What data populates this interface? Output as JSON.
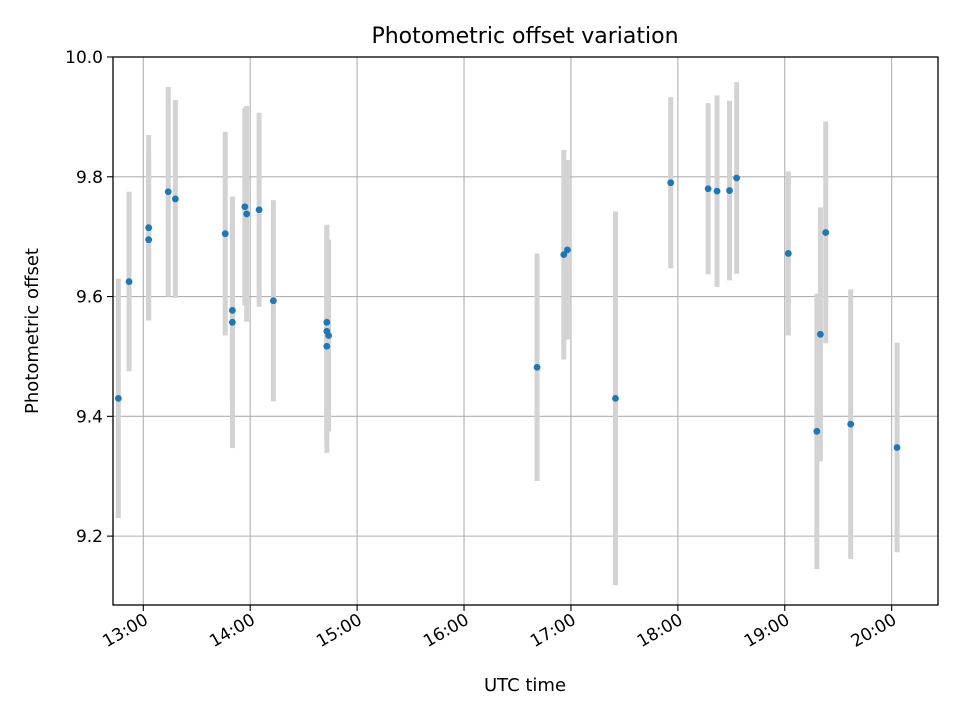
{
  "chart_data": {
    "type": "scatter",
    "title": "Photometric offset variation",
    "xlabel": "UTC time",
    "ylabel": "Photometric offset",
    "xlim": [
      "12:43",
      "20:26"
    ],
    "ylim": [
      9.085,
      10.0
    ],
    "x_ticks": [
      "13:00",
      "14:00",
      "15:00",
      "16:00",
      "17:00",
      "18:00",
      "19:00",
      "20:00"
    ],
    "y_ticks": [
      "9.2",
      "9.4",
      "9.6",
      "9.8",
      "10.0"
    ],
    "grid": true,
    "colors": {
      "point": "#1f77b4",
      "errorbar": "#d3d3d3",
      "grid": "#b0b0b0"
    },
    "points": [
      {
        "t": "12:46",
        "y": 9.43,
        "err": 0.2
      },
      {
        "t": "12:52",
        "y": 9.625,
        "err": 0.15
      },
      {
        "t": "13:03",
        "y": 9.715,
        "err": 0.155
      },
      {
        "t": "13:03",
        "y": 9.695,
        "err": 0.135
      },
      {
        "t": "13:14",
        "y": 9.775,
        "err": 0.175
      },
      {
        "t": "13:18",
        "y": 9.763,
        "err": 0.165
      },
      {
        "t": "13:46",
        "y": 9.705,
        "err": 0.17
      },
      {
        "t": "13:50",
        "y": 9.577,
        "err": 0.15
      },
      {
        "t": "13:50",
        "y": 9.557,
        "err": 0.21
      },
      {
        "t": "13:57",
        "y": 9.75,
        "err": 0.165
      },
      {
        "t": "13:58",
        "y": 9.738,
        "err": 0.18
      },
      {
        "t": "14:05",
        "y": 9.745,
        "err": 0.162
      },
      {
        "t": "14:13",
        "y": 9.593,
        "err": 0.168
      },
      {
        "t": "14:43",
        "y": 9.557,
        "err": 0.16
      },
      {
        "t": "14:43",
        "y": 9.542,
        "err": 0.178
      },
      {
        "t": "14:44",
        "y": 9.535,
        "err": 0.16
      },
      {
        "t": "14:43",
        "y": 9.517,
        "err": 0.178
      },
      {
        "t": "16:41",
        "y": 9.482,
        "err": 0.19
      },
      {
        "t": "16:56",
        "y": 9.67,
        "err": 0.175
      },
      {
        "t": "16:58",
        "y": 9.678,
        "err": 0.15
      },
      {
        "t": "17:25",
        "y": 9.43,
        "err": 0.312
      },
      {
        "t": "17:56",
        "y": 9.79,
        "err": 0.143
      },
      {
        "t": "18:17",
        "y": 9.78,
        "err": 0.143
      },
      {
        "t": "18:22",
        "y": 9.776,
        "err": 0.16
      },
      {
        "t": "18:29",
        "y": 9.777,
        "err": 0.15
      },
      {
        "t": "18:33",
        "y": 9.798,
        "err": 0.16
      },
      {
        "t": "19:02",
        "y": 9.672,
        "err": 0.137
      },
      {
        "t": "19:18",
        "y": 9.375,
        "err": 0.23
      },
      {
        "t": "19:20",
        "y": 9.537,
        "err": 0.212
      },
      {
        "t": "19:23",
        "y": 9.707,
        "err": 0.185
      },
      {
        "t": "19:37",
        "y": 9.387,
        "err": 0.225
      },
      {
        "t": "20:03",
        "y": 9.348,
        "err": 0.175
      }
    ]
  }
}
